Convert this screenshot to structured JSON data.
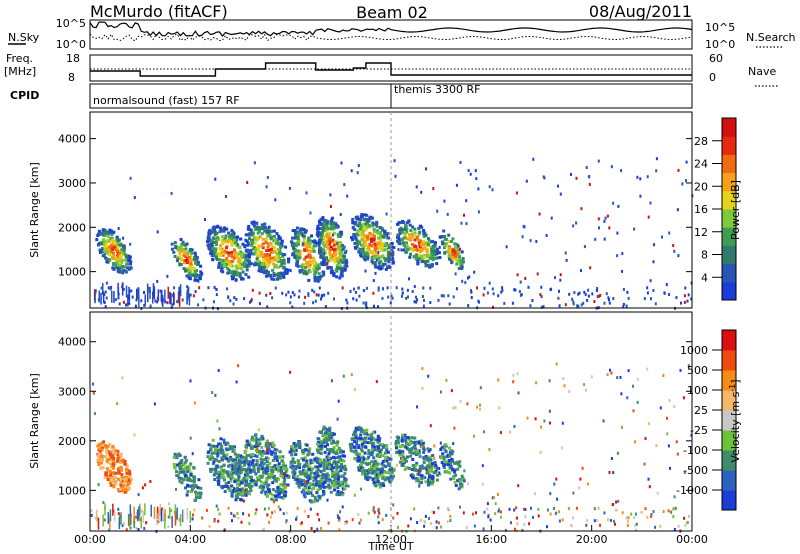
{
  "header": {
    "station": "McMurdo (fitACF)",
    "beam": "Beam 02",
    "date": "08/Aug/2011"
  },
  "status_panels": {
    "nsky_label": "N.Sky",
    "nsearch_label": "N.Search",
    "freq_label_line1": "Freq.",
    "freq_label_line2": "[MHz]",
    "nave_label": "Nave",
    "cpid_label": "CPID",
    "noise_left_ticks": [
      "10^5",
      "10^0"
    ],
    "noise_right_ticks": [
      "10^5",
      "10^0"
    ],
    "freq_ticks": [
      "18",
      "8"
    ],
    "nave_ticks": [
      "60",
      "0"
    ],
    "cpid_segments": [
      {
        "label": "normalsound (fast) 157 RF",
        "start_hour": 0
      },
      {
        "label": "themis 3300 RF",
        "start_hour": 12
      }
    ]
  },
  "chart_data": [
    {
      "type": "heatmap",
      "name": "power",
      "ylabel": "Slant Range [km]",
      "xlabel": "",
      "xlim_hours": [
        0,
        24
      ],
      "ylim": [
        180,
        4600
      ],
      "yticks": [
        "1000",
        "2000",
        "3000",
        "4000"
      ],
      "colorbar": {
        "label": "Power [dB]",
        "ticks": [
          "4",
          "8",
          "12",
          "16",
          "20",
          "24",
          "28"
        ],
        "colors": [
          "#1a3dd6",
          "#2855b8",
          "#2f7a6a",
          "#3f9c55",
          "#7ec83a",
          "#e6d21a",
          "#f5a315",
          "#f06b10",
          "#e52a10",
          "#d21010"
        ]
      },
      "echo_regions": [
        {
          "t0": 0.1,
          "t1": 1.7,
          "r0": 1000,
          "r1": 2000,
          "level": "moderate"
        },
        {
          "t0": 3.0,
          "t1": 9.8,
          "r0": 700,
          "r1": 2400,
          "level": "strong"
        },
        {
          "t0": 9.3,
          "t1": 14.5,
          "r0": 800,
          "r1": 2400,
          "level": "strong"
        },
        {
          "t0": 14.0,
          "t1": 24.0,
          "r0": 200,
          "r1": 3600,
          "level": "weak-scatter"
        }
      ]
    },
    {
      "type": "heatmap",
      "name": "velocity",
      "ylabel": "Slant Range [km]",
      "xlabel": "Time UT",
      "xlim_hours": [
        0,
        24
      ],
      "ylim": [
        180,
        4600
      ],
      "xticks": [
        "00:00",
        "04:00",
        "08:00",
        "12:00",
        "16:00",
        "20:00",
        "00:00"
      ],
      "yticks": [
        "1000",
        "2000",
        "3000",
        "4000"
      ],
      "colorbar": {
        "label": "Velocity [m s",
        "label_superscript": "-1",
        "label_end": "]",
        "ticks": [
          "1000",
          "500",
          "100",
          "25",
          "-25",
          "-100",
          "-500",
          "-1000"
        ],
        "colors": [
          "#1a3dd6",
          "#2a64c0",
          "#3f8c6a",
          "#6cc33a",
          "#c8c8c8",
          "#f5b86a",
          "#f58a15",
          "#f04a10",
          "#dc1010"
        ]
      },
      "echo_regions": [
        {
          "t0": 0.1,
          "t1": 1.7,
          "r0": 1000,
          "r1": 2000,
          "level": "away (orange)"
        },
        {
          "t0": 3.0,
          "t1": 14.5,
          "r0": 700,
          "r1": 2400,
          "level": "toward (green/blue)"
        },
        {
          "t0": 14.0,
          "t1": 24.0,
          "r0": 200,
          "r1": 3600,
          "level": "mixed scatter"
        }
      ]
    }
  ]
}
